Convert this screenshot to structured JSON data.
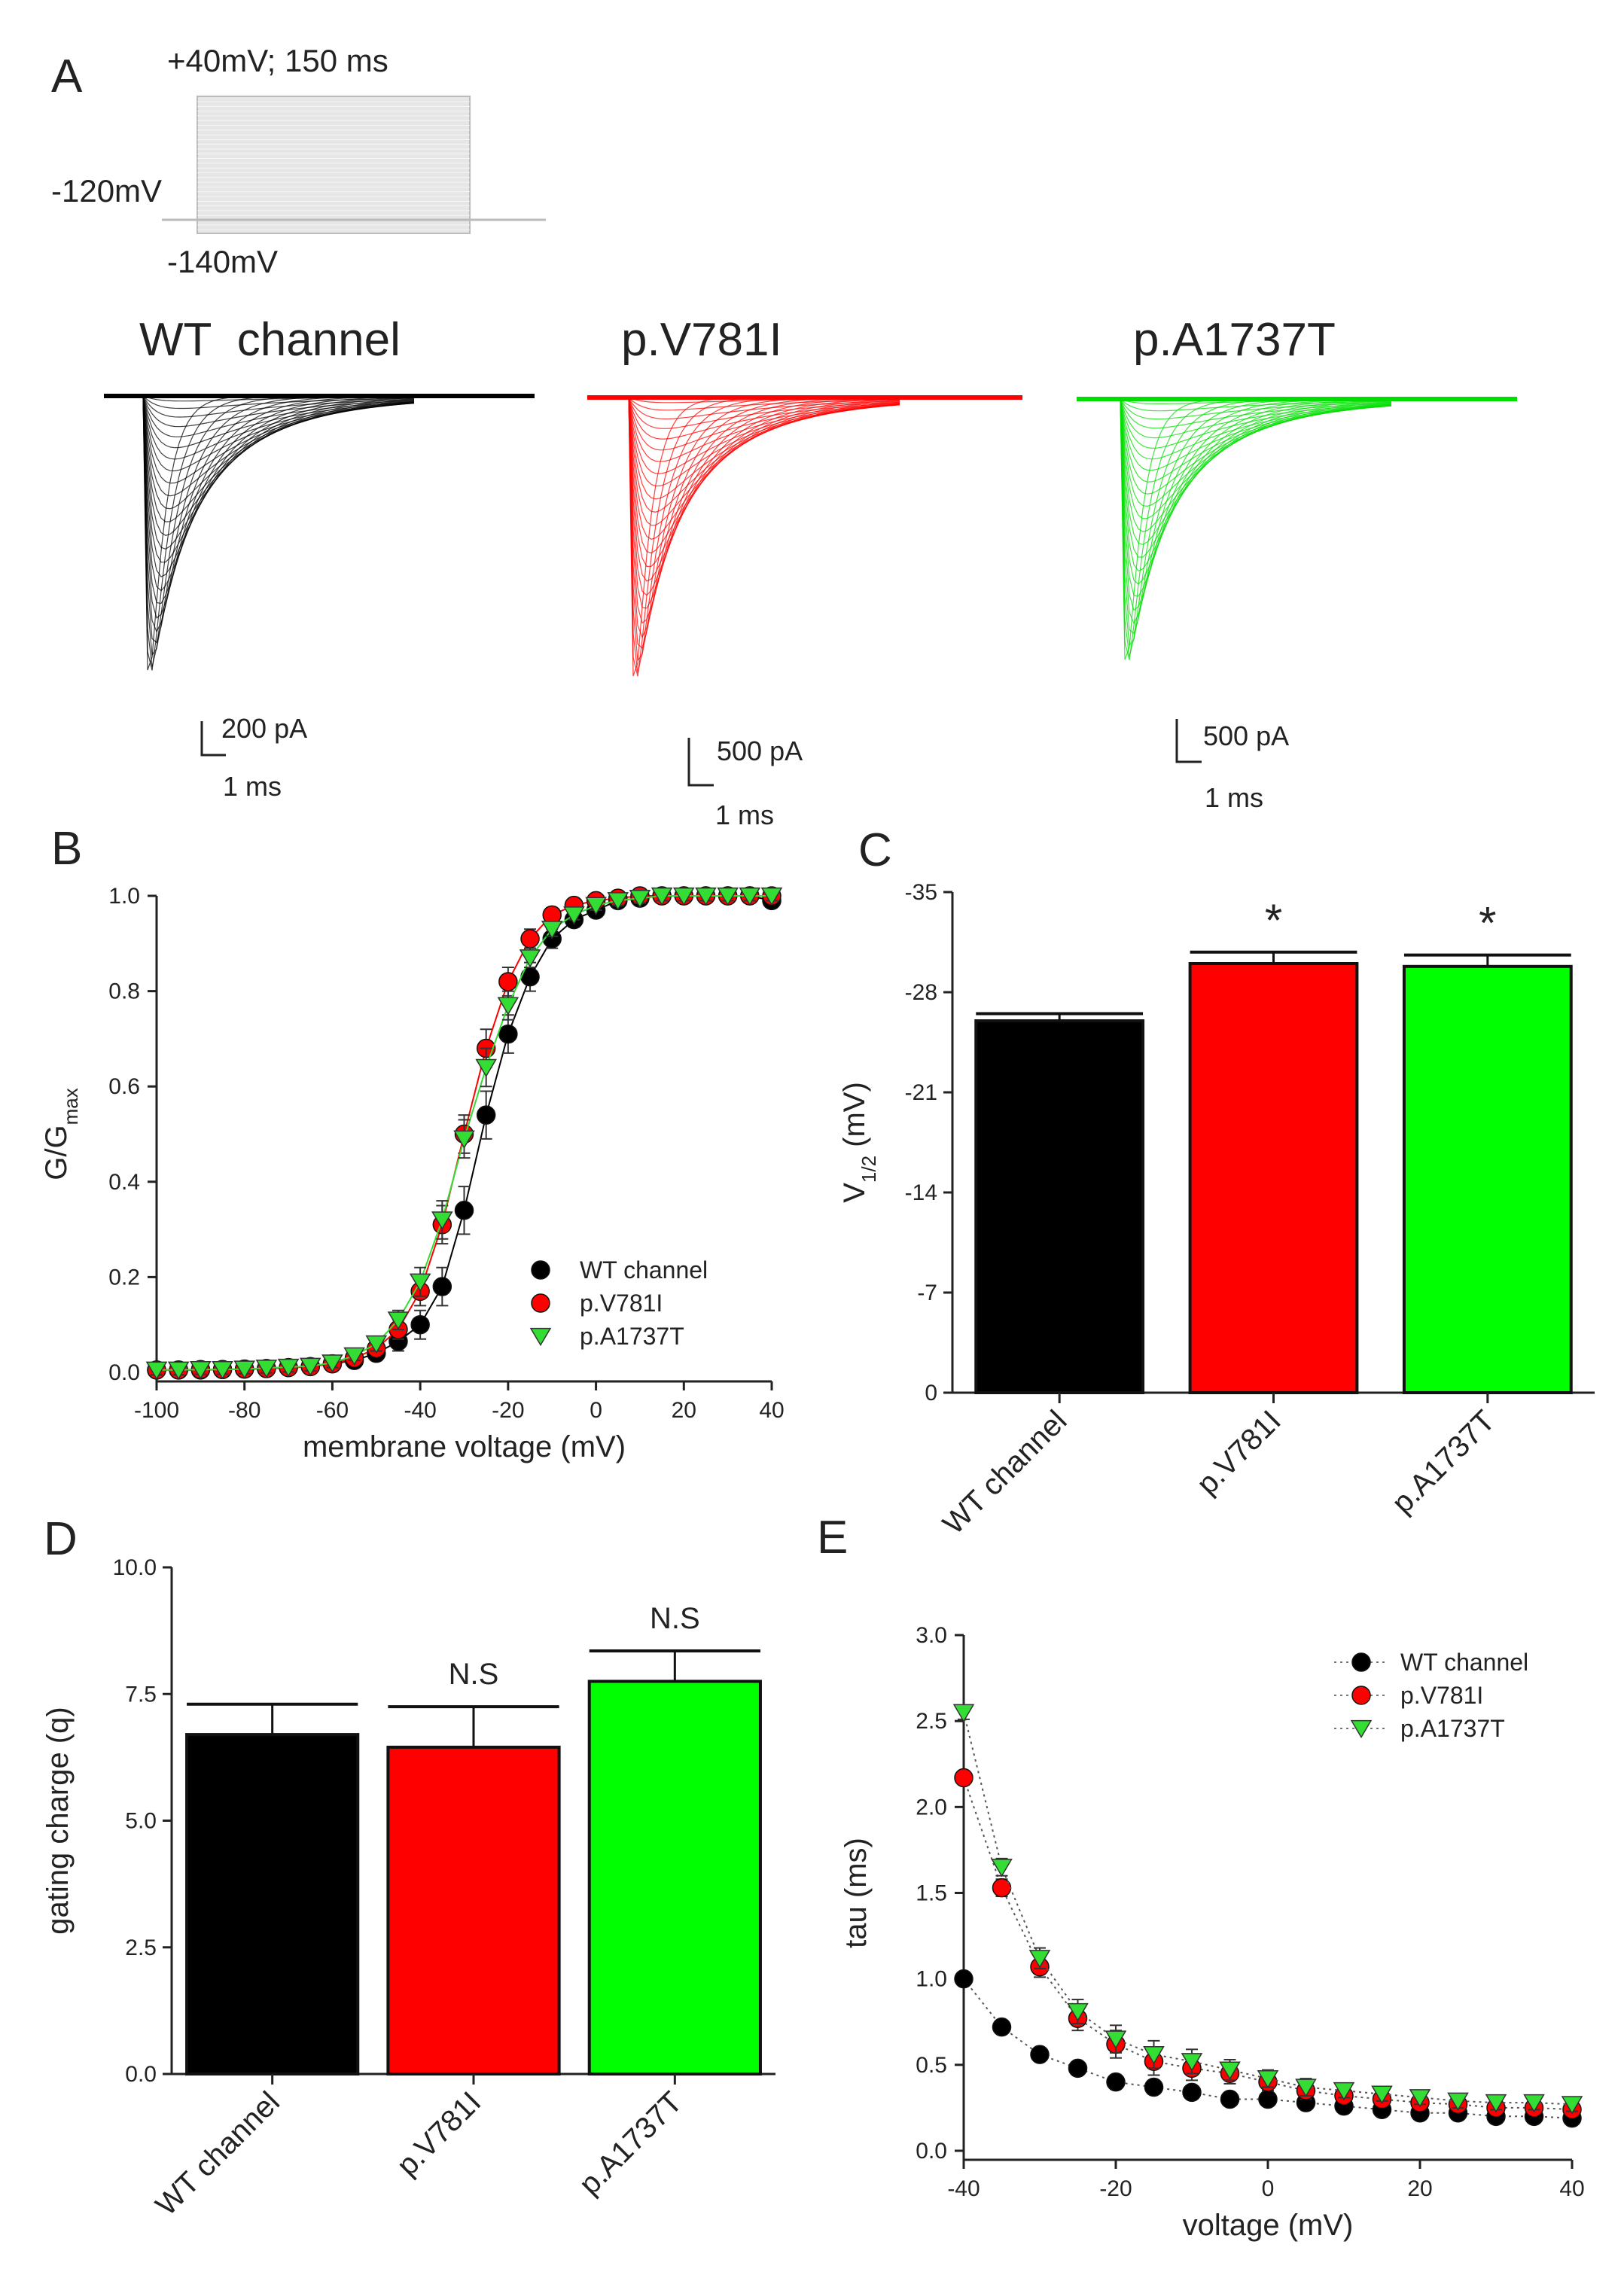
{
  "panel_a": {
    "label": "A",
    "protocol": {
      "top_label": "+40mV; 150 ms",
      "hold_label": "-120mV",
      "bottom_label": "-140mV"
    },
    "traces": [
      {
        "name": "WT  channel",
        "color": "#000000",
        "scale_current": "200 pA",
        "scale_time": "1 ms"
      },
      {
        "name": "p.V781I",
        "color": "#ff0000",
        "scale_current": "500 pA",
        "scale_time": "1 ms"
      },
      {
        "name": "p.A1737T",
        "color": "#00dd00",
        "scale_current": "500 pA",
        "scale_time": "1 ms"
      }
    ]
  },
  "chart_data": [
    {
      "id": "B",
      "panel_label": "B",
      "type": "scatter",
      "xlabel": "membrane voltage (mV)",
      "ylabel": "G/G",
      "ylabel_sub": "max",
      "xlim": [
        -100,
        40
      ],
      "ylim": [
        0,
        1
      ],
      "xticks": [
        "-100",
        "-80",
        "-60",
        "-40",
        "-20",
        "0",
        "20",
        "40"
      ],
      "yticks": [
        "0.0",
        "0.2",
        "0.4",
        "0.6",
        "0.8",
        "1.0"
      ],
      "x": [
        -100,
        -95,
        -90,
        -85,
        -80,
        -75,
        -70,
        -65,
        -60,
        -55,
        -50,
        -45,
        -40,
        -35,
        -30,
        -25,
        -20,
        -15,
        -10,
        -5,
        0,
        5,
        10,
        15,
        20,
        25,
        30,
        35,
        40
      ],
      "legend": "lower-right",
      "series": [
        {
          "name": "WT channel",
          "color": "#000000",
          "marker": "circle",
          "values": [
            0.005,
            0.005,
            0.005,
            0.006,
            0.007,
            0.008,
            0.01,
            0.012,
            0.018,
            0.025,
            0.04,
            0.065,
            0.1,
            0.18,
            0.34,
            0.54,
            0.71,
            0.83,
            0.91,
            0.95,
            0.97,
            0.99,
            0.995,
            1.0,
            1.0,
            1.0,
            1.0,
            1.0,
            0.99
          ],
          "errors": [
            0.01,
            0.01,
            0.01,
            0.01,
            0.01,
            0.01,
            0.01,
            0.01,
            0.01,
            0.01,
            0.015,
            0.02,
            0.03,
            0.04,
            0.05,
            0.05,
            0.04,
            0.03,
            0.02,
            0.015,
            0.01,
            0.01,
            0.01,
            0.01,
            0.01,
            0.01,
            0.01,
            0.01,
            0.01
          ]
        },
        {
          "name": "p.V781I",
          "color": "#ff0000",
          "marker": "circle",
          "values": [
            0.005,
            0.005,
            0.006,
            0.006,
            0.007,
            0.008,
            0.01,
            0.012,
            0.018,
            0.03,
            0.05,
            0.09,
            0.17,
            0.31,
            0.5,
            0.68,
            0.82,
            0.91,
            0.96,
            0.98,
            0.99,
            0.995,
            1.0,
            1.0,
            1.0,
            1.0,
            1.0,
            1.0,
            1.0
          ],
          "errors": [
            0.01,
            0.01,
            0.01,
            0.01,
            0.01,
            0.01,
            0.01,
            0.01,
            0.01,
            0.01,
            0.015,
            0.02,
            0.03,
            0.04,
            0.04,
            0.04,
            0.03,
            0.02,
            0.015,
            0.01,
            0.01,
            0.01,
            0.01,
            0.01,
            0.01,
            0.01,
            0.01,
            0.01,
            0.01
          ]
        },
        {
          "name": "p.A1737T",
          "color": "#33dd33",
          "marker": "triangle-down",
          "values": [
            0.005,
            0.005,
            0.006,
            0.006,
            0.007,
            0.009,
            0.011,
            0.013,
            0.02,
            0.035,
            0.06,
            0.11,
            0.19,
            0.32,
            0.49,
            0.64,
            0.77,
            0.87,
            0.93,
            0.96,
            0.98,
            0.99,
            0.995,
            1.0,
            1.0,
            1.0,
            1.0,
            1.0,
            1.0
          ],
          "errors": [
            0.01,
            0.01,
            0.01,
            0.01,
            0.01,
            0.01,
            0.01,
            0.01,
            0.01,
            0.01,
            0.015,
            0.02,
            0.03,
            0.04,
            0.04,
            0.04,
            0.03,
            0.02,
            0.015,
            0.01,
            0.01,
            0.01,
            0.01,
            0.01,
            0.01,
            0.01,
            0.01,
            0.01,
            0.01
          ]
        }
      ]
    },
    {
      "id": "C",
      "panel_label": "C",
      "type": "bar",
      "ylabel": "V",
      "ylabel_sub": "1/2",
      "ylabel_unit": " (mV)",
      "ylim": [
        0,
        35
      ],
      "yticks": [
        "0",
        "7",
        "14",
        "21",
        "28",
        "35"
      ],
      "ytick_prefix": "-",
      "categories": [
        "WT channel",
        "p.V781I",
        "p.A1737T"
      ],
      "colors": [
        "#000000",
        "#ff0000",
        "#00ff00"
      ],
      "values": [
        26.0,
        30.0,
        29.8
      ],
      "errors": [
        0.5,
        0.8,
        0.8
      ],
      "annotations": [
        "",
        "*",
        "*"
      ]
    },
    {
      "id": "D",
      "panel_label": "D",
      "type": "bar",
      "ylabel": "gating charge (q)",
      "ylim": [
        0,
        10
      ],
      "yticks": [
        "0.0",
        "2.5",
        "5.0",
        "7.5",
        "10.0"
      ],
      "categories": [
        "WT channel",
        "p.V781I",
        "p.A1737T"
      ],
      "colors": [
        "#000000",
        "#ff0000",
        "#00ff00"
      ],
      "values": [
        6.7,
        6.45,
        7.75
      ],
      "errors": [
        0.6,
        0.8,
        0.6
      ],
      "annotations": [
        "",
        "N.S",
        "N.S"
      ]
    },
    {
      "id": "E",
      "panel_label": "E",
      "type": "line",
      "xlabel": "voltage (mV)",
      "ylabel": "tau (ms)",
      "xlim": [
        -40,
        40
      ],
      "ylim": [
        0,
        3
      ],
      "xticks": [
        "-40",
        "-20",
        "0",
        "20",
        "40"
      ],
      "yticks": [
        "0.0",
        "0.5",
        "1.0",
        "1.5",
        "2.0",
        "2.5",
        "3.0"
      ],
      "x": [
        -40,
        -35,
        -30,
        -25,
        -20,
        -15,
        -10,
        -5,
        0,
        5,
        10,
        15,
        20,
        25,
        30,
        35,
        40
      ],
      "legend": "top-right",
      "series": [
        {
          "name": "WT channel",
          "color": "#000000",
          "marker": "circle",
          "values": [
            1.0,
            0.72,
            0.56,
            0.48,
            0.4,
            0.37,
            0.34,
            0.3,
            0.3,
            0.28,
            0.26,
            0.24,
            0.22,
            0.22,
            0.2,
            0.2,
            0.19
          ],
          "errors": [
            0.03,
            0.03,
            0.03,
            0.03,
            0.04,
            0.04,
            0.03,
            0.03,
            0.03,
            0.03,
            0.03,
            0.03,
            0.03,
            0.03,
            0.03,
            0.03,
            0.03
          ]
        },
        {
          "name": "p.V781I",
          "color": "#ff0000",
          "marker": "circle",
          "values": [
            2.17,
            1.53,
            1.07,
            0.77,
            0.62,
            0.52,
            0.48,
            0.45,
            0.4,
            0.35,
            0.32,
            0.3,
            0.28,
            0.27,
            0.25,
            0.25,
            0.24
          ],
          "errors": [
            0.04,
            0.05,
            0.06,
            0.07,
            0.08,
            0.08,
            0.07,
            0.06,
            0.05,
            0.05,
            0.04,
            0.04,
            0.04,
            0.04,
            0.04,
            0.04,
            0.04
          ]
        },
        {
          "name": "p.A1737T",
          "color": "#33dd33",
          "marker": "triangle-down",
          "values": [
            2.55,
            1.65,
            1.12,
            0.81,
            0.65,
            0.56,
            0.52,
            0.47,
            0.42,
            0.37,
            0.35,
            0.33,
            0.31,
            0.29,
            0.28,
            0.28,
            0.27
          ],
          "errors": [
            0.04,
            0.05,
            0.06,
            0.07,
            0.08,
            0.08,
            0.07,
            0.06,
            0.05,
            0.05,
            0.04,
            0.04,
            0.04,
            0.04,
            0.04,
            0.04,
            0.04
          ]
        }
      ]
    }
  ]
}
